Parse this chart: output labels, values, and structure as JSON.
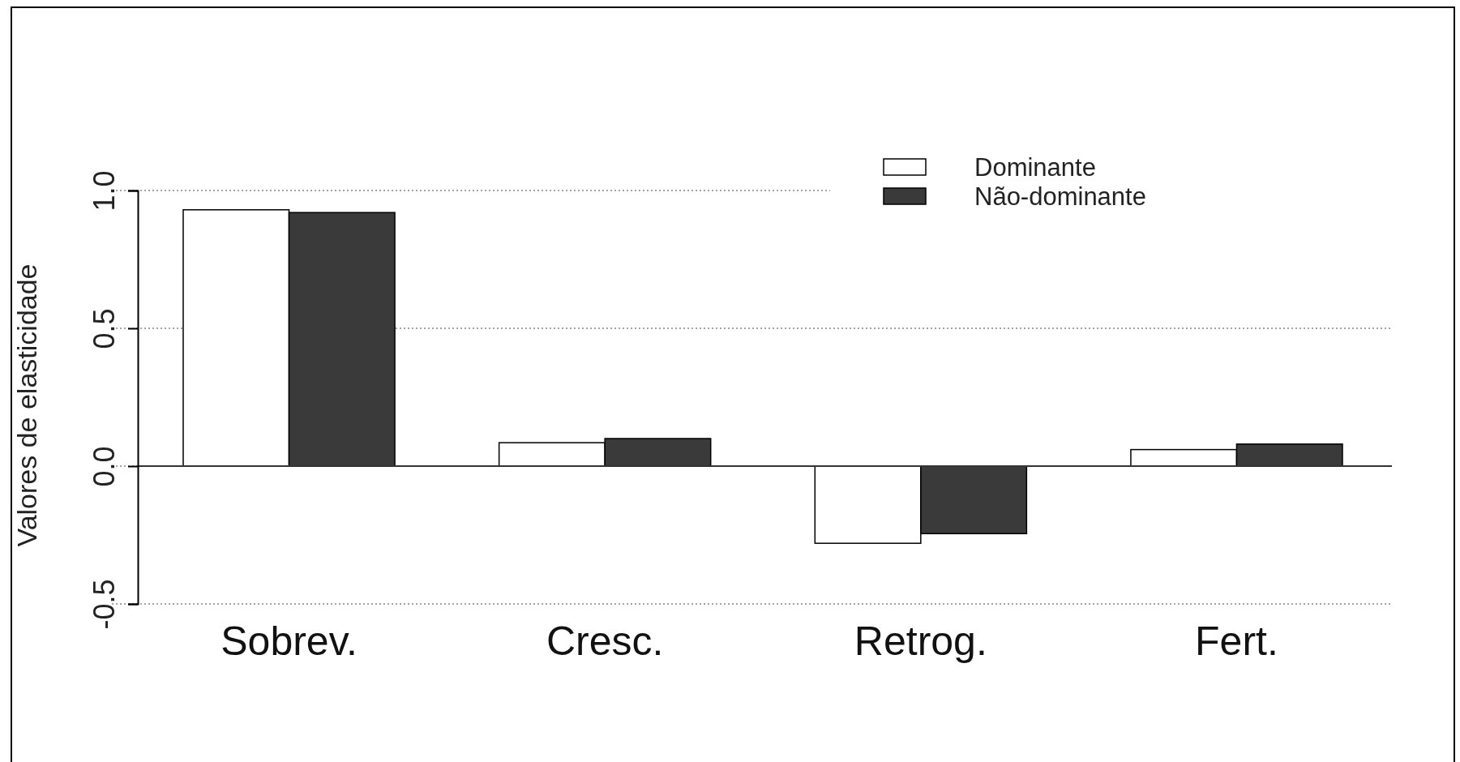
{
  "chart_data": {
    "type": "bar",
    "ylabel": "Valores de elasticidade",
    "categories": [
      "Sobrev.",
      "Cresc.",
      "Retrog.",
      "Fert."
    ],
    "series": [
      {
        "name": "Dominante",
        "color": "#ffffff",
        "values": [
          0.93,
          0.085,
          -0.28,
          0.06
        ]
      },
      {
        "name": "Não-dominante",
        "color": "#3a3a3a",
        "values": [
          0.92,
          0.1,
          -0.245,
          0.08
        ]
      }
    ],
    "ylim": [
      -0.5,
      1.0
    ],
    "yticks": [
      {
        "value": -0.5,
        "label": "-0.5"
      },
      {
        "value": 0,
        "label": "0.0"
      },
      {
        "value": 0.5,
        "label": "0.5"
      },
      {
        "value": 1,
        "label": "1.0"
      }
    ],
    "grid": "y",
    "legend": "top right",
    "ref_lines": [
      {
        "axis": "y",
        "value": 0,
        "color": "#333333",
        "line_style": "solid"
      }
    ]
  }
}
